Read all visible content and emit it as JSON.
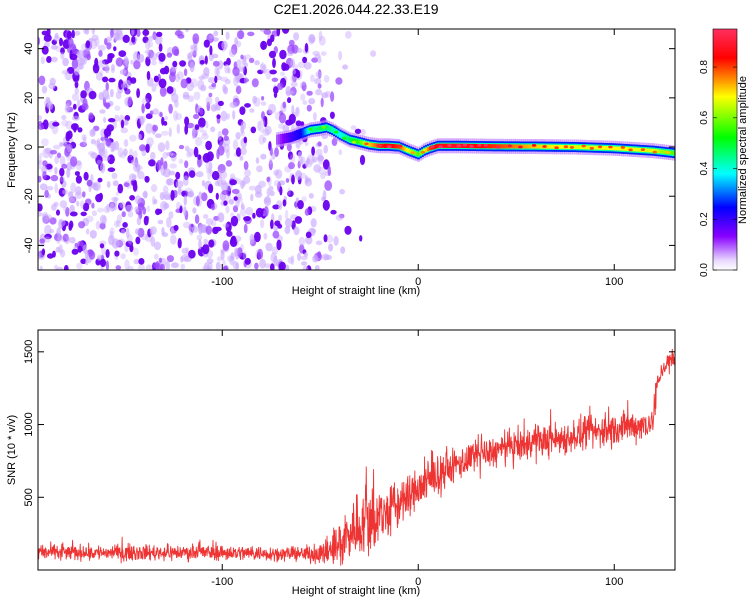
{
  "chart_data": [
    {
      "type": "heatmap",
      "title": "C2E1.2026.044.22.33.E19",
      "xlabel": "Height of straight line (km)",
      "ylabel": "Frequency (Hz)",
      "xlim": [
        -194,
        131
      ],
      "ylim": [
        -50,
        48
      ],
      "xticks": [
        -100,
        0,
        100
      ],
      "xtick_labels": [
        "-100",
        "0",
        "100"
      ],
      "yticks": [
        -40,
        -20,
        0,
        20,
        40
      ],
      "ytick_labels": [
        "-40",
        "-20",
        "0",
        "20",
        "40"
      ],
      "noise_region_km": [
        -194,
        -30
      ],
      "noise_density_by_segment": [
        {
          "x0": -194,
          "x1": -50,
          "density": 1.0
        },
        {
          "x0": -50,
          "x1": -45,
          "density": 0.6
        },
        {
          "x0": -45,
          "x1": -30,
          "density": 0.15
        },
        {
          "x0": -30,
          "x1": -20,
          "density": 0.05
        }
      ],
      "trace": {
        "x": [
          -72,
          -65,
          -60,
          -55,
          -50,
          -47,
          -44,
          -40,
          -35,
          -30,
          -25,
          -20,
          -15,
          -10,
          -5,
          0,
          3,
          6,
          10,
          20,
          40,
          60,
          80,
          100,
          120,
          131
        ],
        "freq_hz": [
          3.0,
          4.0,
          5.5,
          7.0,
          7.5,
          8.0,
          7.0,
          5.0,
          3.0,
          2.0,
          1.0,
          0.5,
          0.5,
          0.2,
          -1.5,
          -3.0,
          -1.5,
          -0.5,
          0.5,
          0.5,
          0.3,
          0.2,
          0.0,
          -0.5,
          -1.5,
          -2.5
        ],
        "amplitude": [
          0.1,
          0.2,
          0.25,
          0.45,
          0.5,
          0.5,
          0.45,
          0.4,
          0.5,
          0.6,
          0.75,
          0.85,
          0.9,
          0.85,
          0.7,
          0.6,
          0.7,
          0.85,
          0.9,
          0.92,
          0.85,
          0.75,
          0.7,
          0.72,
          0.7,
          0.6
        ]
      },
      "colorbar": {
        "label": "Normalized spectral amplitude",
        "range": [
          0,
          0.95
        ],
        "ticks": [
          0.0,
          0.2,
          0.4,
          0.6,
          0.8
        ],
        "tick_labels": [
          "0.0",
          "0.2",
          "0.4",
          "0.6",
          "0.8"
        ],
        "colors": [
          "#ffffff",
          "#8800ff",
          "#0000ff",
          "#00ffff",
          "#00ff00",
          "#ffff00",
          "#ff0000",
          "#ff3060"
        ]
      }
    },
    {
      "type": "line",
      "xlabel": "Height of straight line (km)",
      "ylabel": "SNR (10 * v/v)",
      "xlim": [
        -194,
        131
      ],
      "ylim": [
        0,
        1650
      ],
      "xticks": [
        -100,
        0,
        100
      ],
      "xtick_labels": [
        "-100",
        "0",
        "100"
      ],
      "yticks": [
        500,
        1000,
        1500
      ],
      "ytick_labels": [
        "500",
        "1000",
        "1500"
      ],
      "color": "#ee3333",
      "series": [
        {
          "name": "SNR",
          "x": [
            -194,
            -150,
            -100,
            -60,
            -45,
            -40,
            -35,
            -30,
            -25,
            -20,
            -10,
            0,
            10,
            20,
            40,
            60,
            80,
            100,
            115,
            120,
            122,
            125,
            131
          ],
          "mean": [
            120,
            120,
            120,
            110,
            120,
            180,
            260,
            320,
            340,
            360,
            450,
            560,
            650,
            730,
            820,
            880,
            920,
            970,
            1000,
            1020,
            1280,
            1400,
            1450
          ],
          "spread": [
            70,
            70,
            70,
            60,
            120,
            230,
            280,
            300,
            300,
            300,
            230,
            180,
            170,
            150,
            140,
            150,
            150,
            150,
            140,
            140,
            100,
            100,
            110
          ]
        }
      ]
    }
  ]
}
